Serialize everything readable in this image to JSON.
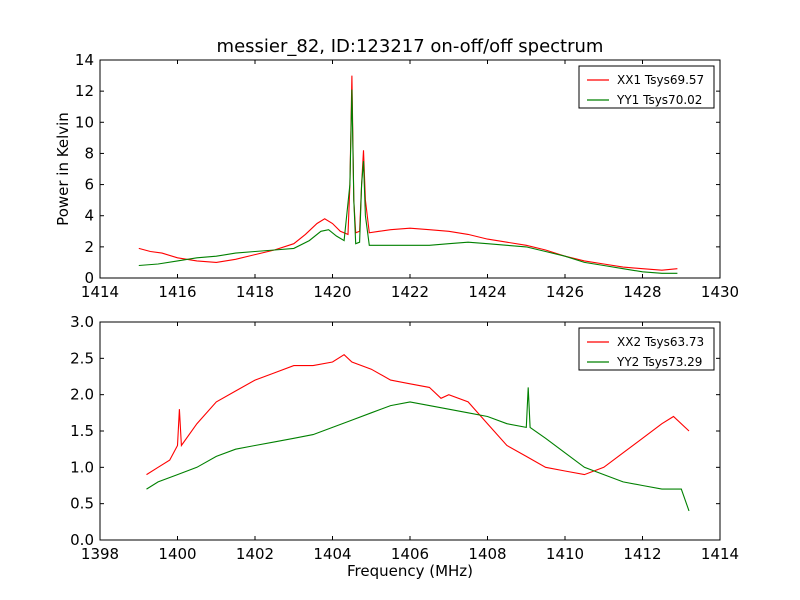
{
  "chart_data": [
    {
      "type": "line",
      "title": "messier_82, ID:123217 on-off/off spectrum",
      "xlabel": "",
      "ylabel": "Power in Kelvin",
      "xlim": [
        1414,
        1430
      ],
      "ylim": [
        0,
        14
      ],
      "xticks": [
        1414,
        1416,
        1418,
        1420,
        1422,
        1424,
        1426,
        1428,
        1430
      ],
      "yticks": [
        0,
        2,
        4,
        6,
        8,
        10,
        12,
        14
      ],
      "grid": false,
      "legend_position": "top-right",
      "series": [
        {
          "name": "XX1 Tsys69.57",
          "color": "#ff0000",
          "points": [
            [
              1415.0,
              1.9
            ],
            [
              1415.3,
              1.7
            ],
            [
              1415.6,
              1.6
            ],
            [
              1416.0,
              1.3
            ],
            [
              1416.5,
              1.1
            ],
            [
              1417.0,
              1.0
            ],
            [
              1417.5,
              1.2
            ],
            [
              1418.0,
              1.5
            ],
            [
              1418.5,
              1.8
            ],
            [
              1419.0,
              2.2
            ],
            [
              1419.3,
              2.8
            ],
            [
              1419.6,
              3.5
            ],
            [
              1419.8,
              3.8
            ],
            [
              1420.0,
              3.5
            ],
            [
              1420.2,
              3.0
            ],
            [
              1420.4,
              2.8
            ],
            [
              1420.45,
              6.0
            ],
            [
              1420.5,
              13.0
            ],
            [
              1420.55,
              5.0
            ],
            [
              1420.6,
              2.9
            ],
            [
              1420.7,
              3.0
            ],
            [
              1420.75,
              6.0
            ],
            [
              1420.8,
              8.2
            ],
            [
              1420.85,
              5.0
            ],
            [
              1420.95,
              2.9
            ],
            [
              1421.2,
              3.0
            ],
            [
              1421.5,
              3.1
            ],
            [
              1422.0,
              3.2
            ],
            [
              1422.5,
              3.1
            ],
            [
              1423.0,
              3.0
            ],
            [
              1423.5,
              2.8
            ],
            [
              1424.0,
              2.5
            ],
            [
              1424.5,
              2.3
            ],
            [
              1425.0,
              2.1
            ],
            [
              1425.5,
              1.8
            ],
            [
              1426.0,
              1.4
            ],
            [
              1426.5,
              1.1
            ],
            [
              1427.0,
              0.9
            ],
            [
              1427.5,
              0.7
            ],
            [
              1428.0,
              0.6
            ],
            [
              1428.5,
              0.5
            ],
            [
              1428.9,
              0.6
            ]
          ]
        },
        {
          "name": "YY1 Tsys70.02",
          "color": "#008000",
          "points": [
            [
              1415.0,
              0.8
            ],
            [
              1415.5,
              0.9
            ],
            [
              1416.0,
              1.1
            ],
            [
              1416.5,
              1.3
            ],
            [
              1417.0,
              1.4
            ],
            [
              1417.5,
              1.6
            ],
            [
              1418.0,
              1.7
            ],
            [
              1418.5,
              1.8
            ],
            [
              1419.0,
              1.9
            ],
            [
              1419.4,
              2.4
            ],
            [
              1419.7,
              3.0
            ],
            [
              1419.9,
              3.1
            ],
            [
              1420.1,
              2.7
            ],
            [
              1420.3,
              2.4
            ],
            [
              1420.45,
              6.0
            ],
            [
              1420.5,
              12.1
            ],
            [
              1420.55,
              5.0
            ],
            [
              1420.6,
              2.2
            ],
            [
              1420.7,
              2.3
            ],
            [
              1420.75,
              6.0
            ],
            [
              1420.8,
              7.5
            ],
            [
              1420.85,
              4.0
            ],
            [
              1420.95,
              2.1
            ],
            [
              1421.5,
              2.1
            ],
            [
              1422.0,
              2.1
            ],
            [
              1422.5,
              2.1
            ],
            [
              1423.0,
              2.2
            ],
            [
              1423.5,
              2.3
            ],
            [
              1424.0,
              2.2
            ],
            [
              1424.5,
              2.1
            ],
            [
              1425.0,
              2.0
            ],
            [
              1425.5,
              1.7
            ],
            [
              1426.0,
              1.4
            ],
            [
              1426.5,
              1.0
            ],
            [
              1427.0,
              0.8
            ],
            [
              1427.5,
              0.6
            ],
            [
              1428.0,
              0.4
            ],
            [
              1428.5,
              0.3
            ],
            [
              1428.9,
              0.3
            ]
          ]
        }
      ]
    },
    {
      "type": "line",
      "title": "",
      "xlabel": "Frequency (MHz)",
      "ylabel": "",
      "xlim": [
        1398,
        1414
      ],
      "ylim": [
        0.0,
        3.0
      ],
      "xticks": [
        1398,
        1400,
        1402,
        1404,
        1406,
        1408,
        1410,
        1412,
        1414
      ],
      "yticks": [
        0.0,
        0.5,
        1.0,
        1.5,
        2.0,
        2.5,
        3.0
      ],
      "grid": false,
      "legend_position": "top-right",
      "series": [
        {
          "name": "XX2 Tsys63.73",
          "color": "#ff0000",
          "points": [
            [
              1399.2,
              0.9
            ],
            [
              1399.5,
              1.0
            ],
            [
              1399.8,
              1.1
            ],
            [
              1400.0,
              1.3
            ],
            [
              1400.05,
              1.8
            ],
            [
              1400.1,
              1.3
            ],
            [
              1400.5,
              1.6
            ],
            [
              1401.0,
              1.9
            ],
            [
              1401.5,
              2.05
            ],
            [
              1402.0,
              2.2
            ],
            [
              1402.5,
              2.3
            ],
            [
              1403.0,
              2.4
            ],
            [
              1403.5,
              2.4
            ],
            [
              1404.0,
              2.45
            ],
            [
              1404.3,
              2.55
            ],
            [
              1404.5,
              2.45
            ],
            [
              1405.0,
              2.35
            ],
            [
              1405.5,
              2.2
            ],
            [
              1406.0,
              2.15
            ],
            [
              1406.5,
              2.1
            ],
            [
              1406.8,
              1.95
            ],
            [
              1407.0,
              2.0
            ],
            [
              1407.5,
              1.9
            ],
            [
              1408.0,
              1.6
            ],
            [
              1408.5,
              1.3
            ],
            [
              1409.0,
              1.15
            ],
            [
              1409.5,
              1.0
            ],
            [
              1410.0,
              0.95
            ],
            [
              1410.5,
              0.9
            ],
            [
              1411.0,
              1.0
            ],
            [
              1411.5,
              1.2
            ],
            [
              1412.0,
              1.4
            ],
            [
              1412.5,
              1.6
            ],
            [
              1412.8,
              1.7
            ],
            [
              1413.2,
              1.5
            ]
          ]
        },
        {
          "name": "YY2 Tsys73.29",
          "color": "#008000",
          "points": [
            [
              1399.2,
              0.7
            ],
            [
              1399.5,
              0.8
            ],
            [
              1400.0,
              0.9
            ],
            [
              1400.5,
              1.0
            ],
            [
              1401.0,
              1.15
            ],
            [
              1401.5,
              1.25
            ],
            [
              1402.0,
              1.3
            ],
            [
              1402.5,
              1.35
            ],
            [
              1403.0,
              1.4
            ],
            [
              1403.5,
              1.45
            ],
            [
              1404.0,
              1.55
            ],
            [
              1404.5,
              1.65
            ],
            [
              1405.0,
              1.75
            ],
            [
              1405.5,
              1.85
            ],
            [
              1406.0,
              1.9
            ],
            [
              1406.5,
              1.85
            ],
            [
              1407.0,
              1.8
            ],
            [
              1407.5,
              1.75
            ],
            [
              1408.0,
              1.7
            ],
            [
              1408.5,
              1.6
            ],
            [
              1409.0,
              1.55
            ],
            [
              1409.05,
              2.1
            ],
            [
              1409.1,
              1.55
            ],
            [
              1409.5,
              1.4
            ],
            [
              1410.0,
              1.2
            ],
            [
              1410.5,
              1.0
            ],
            [
              1411.0,
              0.9
            ],
            [
              1411.5,
              0.8
            ],
            [
              1412.0,
              0.75
            ],
            [
              1412.5,
              0.7
            ],
            [
              1413.0,
              0.7
            ],
            [
              1413.2,
              0.4
            ]
          ]
        }
      ]
    }
  ]
}
